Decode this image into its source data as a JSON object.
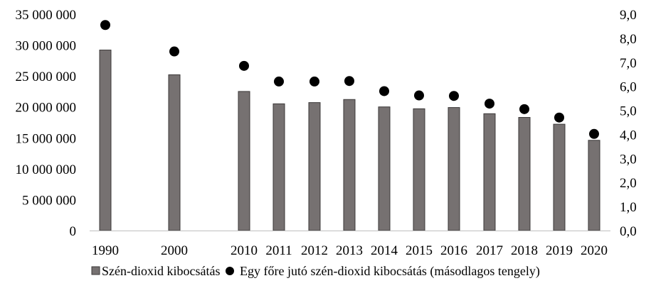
{
  "chart_data": {
    "type": "bar",
    "title": "",
    "xlabel": "",
    "ylabel": "",
    "categories": [
      "1990",
      "2000",
      "2010",
      "2011",
      "2012",
      "2013",
      "2014",
      "2015",
      "2016",
      "2017",
      "2018",
      "2019",
      "2020"
    ],
    "series": [
      {
        "name": "Szén-dioxid kibocsátás",
        "type": "bar",
        "axis": "primary",
        "color": "#767171",
        "values": [
          29200000,
          25200000,
          22500000,
          20500000,
          20700000,
          21200000,
          20000000,
          19700000,
          19900000,
          18900000,
          18300000,
          17200000,
          14600000
        ]
      },
      {
        "name": "Egy főre jutó szén-dioxid kibocsátás (másodlagos tengely)",
        "type": "scatter",
        "axis": "secondary",
        "color": "#000000",
        "values": [
          8.55,
          7.45,
          6.85,
          6.2,
          6.2,
          6.22,
          5.8,
          5.62,
          5.6,
          5.28,
          5.05,
          4.7,
          4.02
        ]
      }
    ],
    "y_primary": {
      "min": 0,
      "max": 35000000,
      "ticks": [
        "0",
        "5 000 000",
        "10 000 000",
        "15 000 000",
        "20 000 000",
        "25 000 000",
        "30 000 000",
        "35 000 000"
      ]
    },
    "y_secondary": {
      "min": 0,
      "max": 9,
      "ticks": [
        "0,0",
        "1,0",
        "2,0",
        "3,0",
        "4,0",
        "5,0",
        "6,0",
        "7,0",
        "8,0",
        "9,0"
      ]
    },
    "grid": false,
    "legend": "bottom"
  }
}
